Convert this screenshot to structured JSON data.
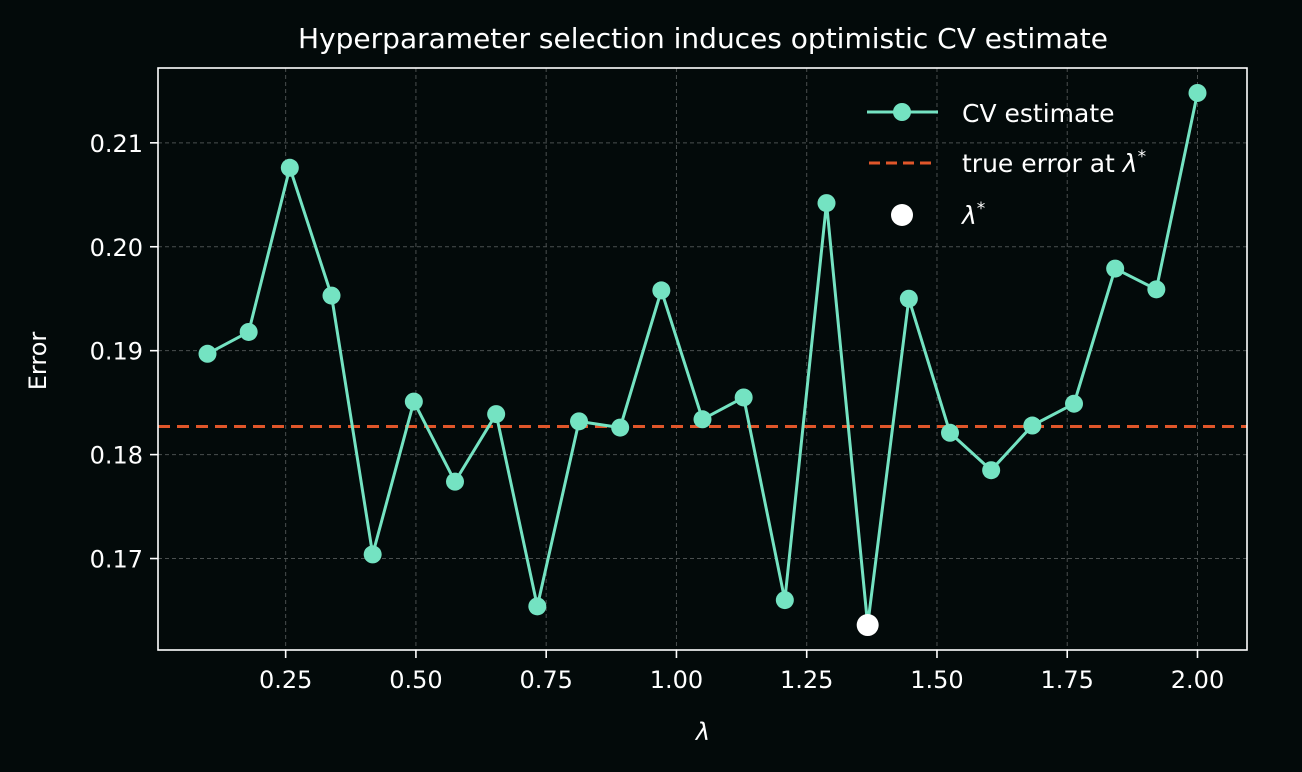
{
  "chart_data": {
    "type": "line",
    "title": "Hyperparameter selection induces optimistic CV estimate",
    "xlabel": "λ",
    "ylabel": "Error",
    "xlim": [
      0.005,
      2.095
    ],
    "ylim": [
      0.1612,
      0.2172
    ],
    "xticks": [
      0.25,
      0.5,
      0.75,
      1.0,
      1.25,
      1.5,
      1.75,
      2.0
    ],
    "xtick_labels": [
      "0.25",
      "0.50",
      "0.75",
      "1.00",
      "1.25",
      "1.50",
      "1.75",
      "2.00"
    ],
    "yticks": [
      0.17,
      0.18,
      0.19,
      0.2,
      0.21
    ],
    "ytick_labels": [
      "0.17",
      "0.18",
      "0.19",
      "0.20",
      "0.21"
    ],
    "grid": true,
    "legend_position": "upper right",
    "series": [
      {
        "name": "CV estimate",
        "style": "line-marker",
        "color": "#74e3c2",
        "x": [
          0.1,
          0.179,
          0.258,
          0.338,
          0.417,
          0.496,
          0.575,
          0.654,
          0.733,
          0.813,
          0.892,
          0.971,
          1.05,
          1.129,
          1.208,
          1.288,
          1.367,
          1.446,
          1.525,
          1.604,
          1.683,
          1.763,
          1.842,
          1.921,
          2.0
        ],
        "values": [
          0.1897,
          0.1918,
          0.2076,
          0.1953,
          0.1704,
          0.1851,
          0.1774,
          0.1839,
          0.1654,
          0.1832,
          0.1826,
          0.1958,
          0.1834,
          0.1855,
          0.166,
          0.2042,
          0.1636,
          0.195,
          0.1821,
          0.1785,
          0.1828,
          0.1849,
          0.1979,
          0.1959,
          0.2148
        ]
      },
      {
        "name": "true error at λ*",
        "style": "dashed-hline",
        "color": "#e0562a",
        "value": 0.1827
      },
      {
        "name": "λ*",
        "style": "marker",
        "color": "#ffffff",
        "x": 1.367,
        "value": 0.1636
      }
    ],
    "legend": [
      {
        "label": "CV estimate"
      },
      {
        "label_prefix": "true error at ",
        "label_symbol": "λ",
        "label_sup": "*"
      },
      {
        "label_symbol": "λ",
        "label_sup": "*"
      }
    ]
  },
  "colors": {
    "background": "#030a0a",
    "foreground": "#ffffff",
    "grid": "#4a4f4f",
    "cv": "#74e3c2",
    "true_error": "#e0562a",
    "lambda_star": "#ffffff"
  }
}
